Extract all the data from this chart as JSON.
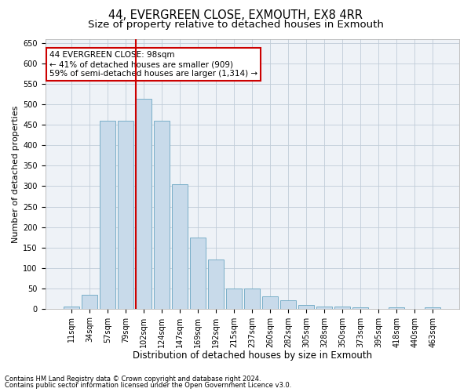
{
  "title1": "44, EVERGREEN CLOSE, EXMOUTH, EX8 4RR",
  "title2": "Size of property relative to detached houses in Exmouth",
  "xlabel": "Distribution of detached houses by size in Exmouth",
  "ylabel": "Number of detached properties",
  "categories": [
    "11sqm",
    "34sqm",
    "57sqm",
    "79sqm",
    "102sqm",
    "124sqm",
    "147sqm",
    "169sqm",
    "192sqm",
    "215sqm",
    "237sqm",
    "260sqm",
    "282sqm",
    "305sqm",
    "328sqm",
    "350sqm",
    "373sqm",
    "395sqm",
    "418sqm",
    "440sqm",
    "463sqm"
  ],
  "values": [
    5,
    35,
    460,
    460,
    515,
    460,
    305,
    175,
    120,
    50,
    50,
    30,
    20,
    10,
    5,
    5,
    3,
    0,
    3,
    0,
    3
  ],
  "bar_color": "#c8daea",
  "bar_edge_color": "#7aafc8",
  "vline_color": "#cc0000",
  "annotation_text": "44 EVERGREEN CLOSE: 98sqm\n← 41% of detached houses are smaller (909)\n59% of semi-detached houses are larger (1,314) →",
  "annotation_box_facecolor": "white",
  "annotation_box_edgecolor": "#cc0000",
  "ylim": [
    0,
    660
  ],
  "yticks": [
    0,
    50,
    100,
    150,
    200,
    250,
    300,
    350,
    400,
    450,
    500,
    550,
    600,
    650
  ],
  "footer1": "Contains HM Land Registry data © Crown copyright and database right 2024.",
  "footer2": "Contains public sector information licensed under the Open Government Licence v3.0.",
  "bg_color": "#eef2f7",
  "grid_color": "#c0ccd8",
  "title1_fontsize": 10.5,
  "title2_fontsize": 9.5,
  "xlabel_fontsize": 8.5,
  "ylabel_fontsize": 8,
  "tick_fontsize": 7,
  "annotation_fontsize": 7.5,
  "footer_fontsize": 6
}
